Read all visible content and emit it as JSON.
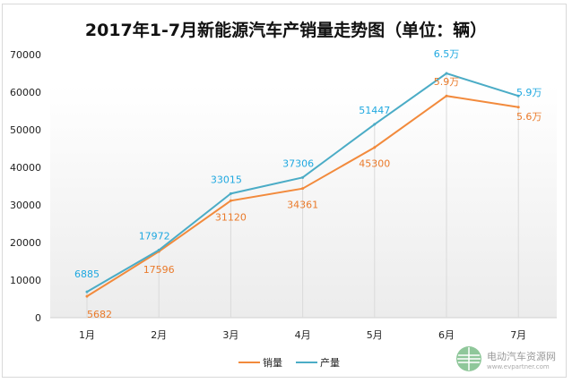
{
  "chart_data": {
    "type": "line",
    "title": "2017年1-7月新能源汽车产销量走势图（单位：辆）",
    "categories": [
      "1月",
      "2月",
      "3月",
      "4月",
      "5月",
      "6月",
      "7月"
    ],
    "ylim": [
      0,
      70000
    ],
    "yticks": [
      "0",
      "10000",
      "20000",
      "30000",
      "40000",
      "50000",
      "60000",
      "70000"
    ],
    "series": [
      {
        "name": "销量",
        "color": "#f28a3c",
        "values": [
          5682,
          17596,
          31120,
          34361,
          45300,
          59000,
          56000
        ],
        "labels": [
          "5682",
          "17596",
          "31120",
          "34361",
          "45300",
          "5.9万",
          "5.6万"
        ]
      },
      {
        "name": "产量",
        "color": "#4bacc6",
        "values": [
          6885,
          17972,
          33015,
          37306,
          51447,
          65000,
          59000
        ],
        "labels": [
          "6885",
          "17972",
          "33015",
          "37306",
          "51447",
          "6.5万",
          "5.9万"
        ]
      }
    ],
    "legend": "bottom"
  },
  "watermark": {
    "name": "电动汽车资源网",
    "url": "www.evpartner.com"
  }
}
